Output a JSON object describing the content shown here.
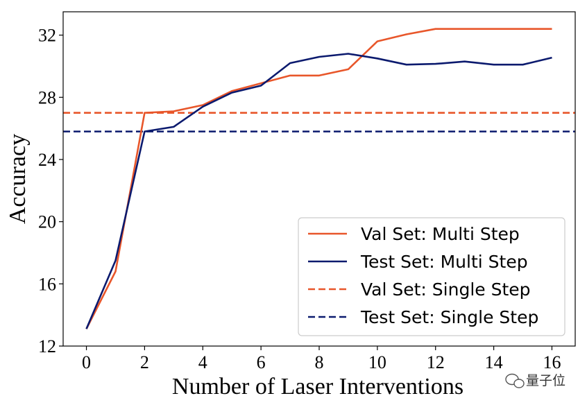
{
  "chart_data": {
    "type": "line",
    "title": "",
    "xlabel": "Number of Laser Interventions",
    "ylabel": "Accuracy",
    "xlim": [
      -0.8,
      16.8
    ],
    "ylim": [
      12,
      33.5
    ],
    "xticks": [
      0,
      2,
      4,
      6,
      8,
      10,
      12,
      14,
      16
    ],
    "yticks": [
      12,
      16,
      20,
      24,
      28,
      32
    ],
    "grid": false,
    "legend_position": "lower-right",
    "series": [
      {
        "name": "Val Set: Multi Step",
        "color": "#E8562A",
        "style": "solid",
        "x": [
          0,
          1,
          2,
          3,
          4,
          5,
          6,
          7,
          8,
          9,
          10,
          11,
          12,
          13,
          14,
          15,
          16
        ],
        "y": [
          13.1,
          16.8,
          27.0,
          27.1,
          27.5,
          28.4,
          28.9,
          29.4,
          29.4,
          29.8,
          31.6,
          32.05,
          32.4,
          32.4,
          32.4,
          32.4,
          32.4
        ]
      },
      {
        "name": "Test Set: Multi Step",
        "color": "#0B1A6E",
        "style": "solid",
        "x": [
          0,
          1,
          2,
          3,
          4,
          5,
          6,
          7,
          8,
          9,
          10,
          11,
          12,
          13,
          14,
          15,
          16
        ],
        "y": [
          13.1,
          17.5,
          25.8,
          26.1,
          27.4,
          28.3,
          28.75,
          30.2,
          30.6,
          30.8,
          30.5,
          30.1,
          30.15,
          30.3,
          30.1,
          30.1,
          30.55
        ]
      },
      {
        "name": "Val Set: Single Step",
        "color": "#E8562A",
        "style": "dashed",
        "y_constant": 27.0
      },
      {
        "name": "Test Set: Single Step",
        "color": "#0B1A6E",
        "style": "dashed",
        "y_constant": 25.8
      }
    ]
  },
  "watermark": {
    "icon": "wechat-icon",
    "text": "量子位"
  }
}
